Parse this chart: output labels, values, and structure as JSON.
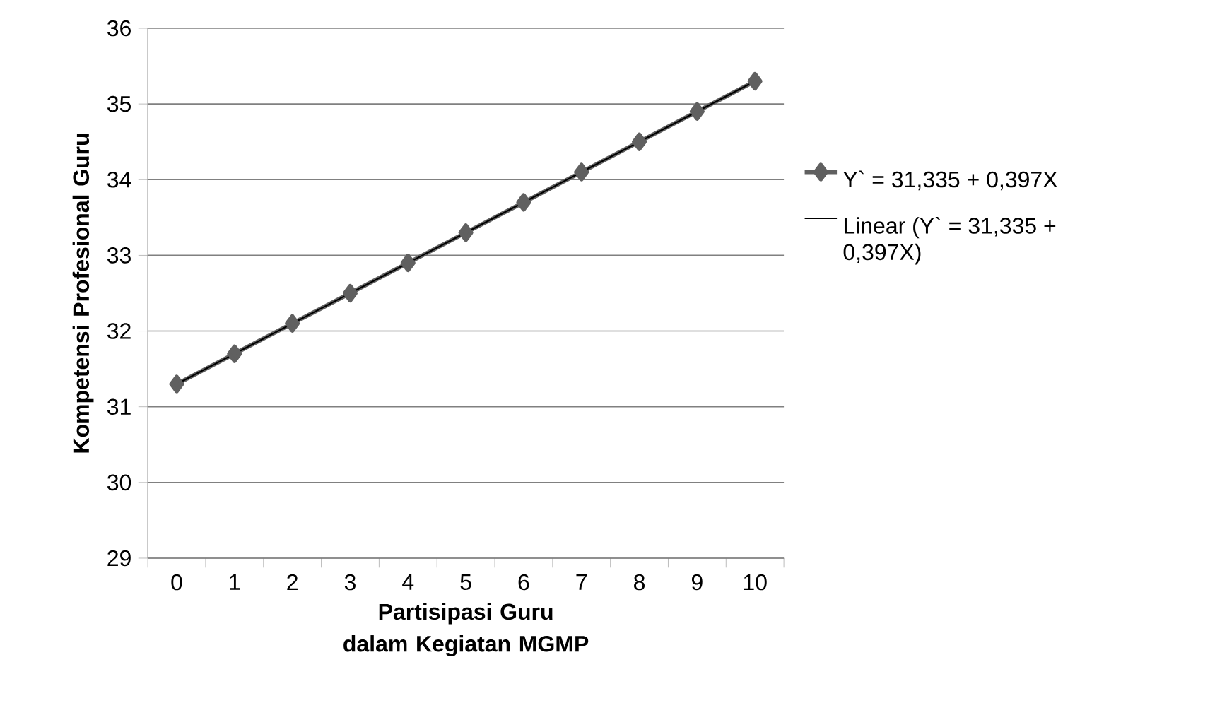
{
  "chart_data": {
    "type": "line",
    "xlabel": "Partisipasi Guru dalam Kegiatan MGMP",
    "ylabel": "Kompetensi Profesional Guru",
    "categories": [
      "0",
      "1",
      "2",
      "3",
      "4",
      "5",
      "6",
      "7",
      "8",
      "9",
      "10"
    ],
    "series": [
      {
        "name": "Y` = 31,335 + 0,397X",
        "color": "#606060",
        "marker": "diamond",
        "values": [
          31.3,
          31.7,
          32.1,
          32.5,
          32.9,
          33.3,
          33.7,
          34.1,
          34.5,
          34.9,
          35.3
        ]
      },
      {
        "name": "Linear (Y` = 31,335 + 0,397X)",
        "color": "#000000",
        "marker": "none",
        "values": [
          31.3,
          31.7,
          32.1,
          32.5,
          32.9,
          33.3,
          33.7,
          34.1,
          34.5,
          34.9,
          35.3
        ]
      }
    ],
    "ylim": [
      29,
      36
    ],
    "yticks": [
      29,
      30,
      31,
      32,
      33,
      34,
      35,
      36
    ],
    "grid": "y",
    "legend": "right"
  }
}
